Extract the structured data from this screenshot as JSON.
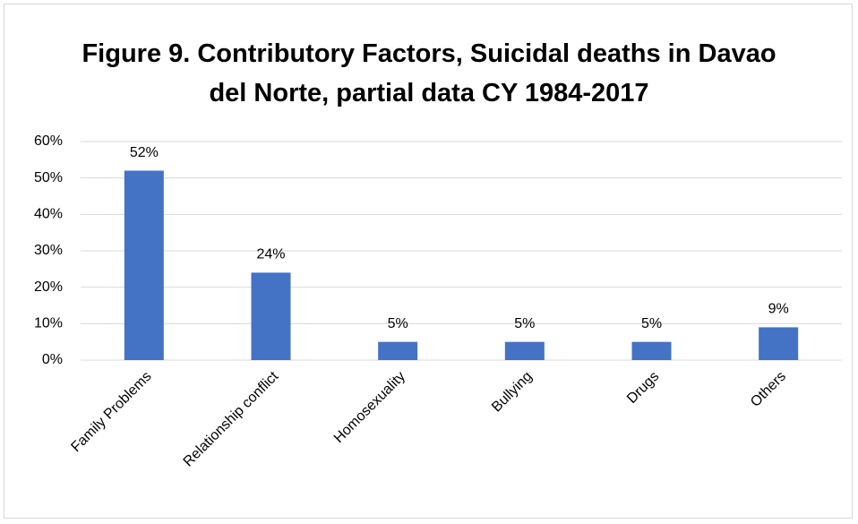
{
  "chart_data": {
    "type": "bar",
    "title": "Figure 9. Contributory Factors, Suicidal deaths in Davao del Norte, partial data CY 1984-2017",
    "categories": [
      "Family Problems",
      "Relationship conflict",
      "Homosexuality",
      "Bullying",
      "Drugs",
      "Others"
    ],
    "values": [
      52,
      24,
      5,
      5,
      5,
      9
    ],
    "value_labels": [
      "52%",
      "24%",
      "5%",
      "5%",
      "5%",
      "9%"
    ],
    "color": "#4472c4",
    "ylim": [
      0,
      60
    ],
    "yticks": [
      {
        "value": 0,
        "label": "0%"
      },
      {
        "value": 10,
        "label": "10%"
      },
      {
        "value": 20,
        "label": "20%"
      },
      {
        "value": 30,
        "label": "30%"
      },
      {
        "value": 40,
        "label": "40%"
      },
      {
        "value": 50,
        "label": "50%"
      },
      {
        "value": 60,
        "label": "60%"
      }
    ],
    "grid": true
  }
}
